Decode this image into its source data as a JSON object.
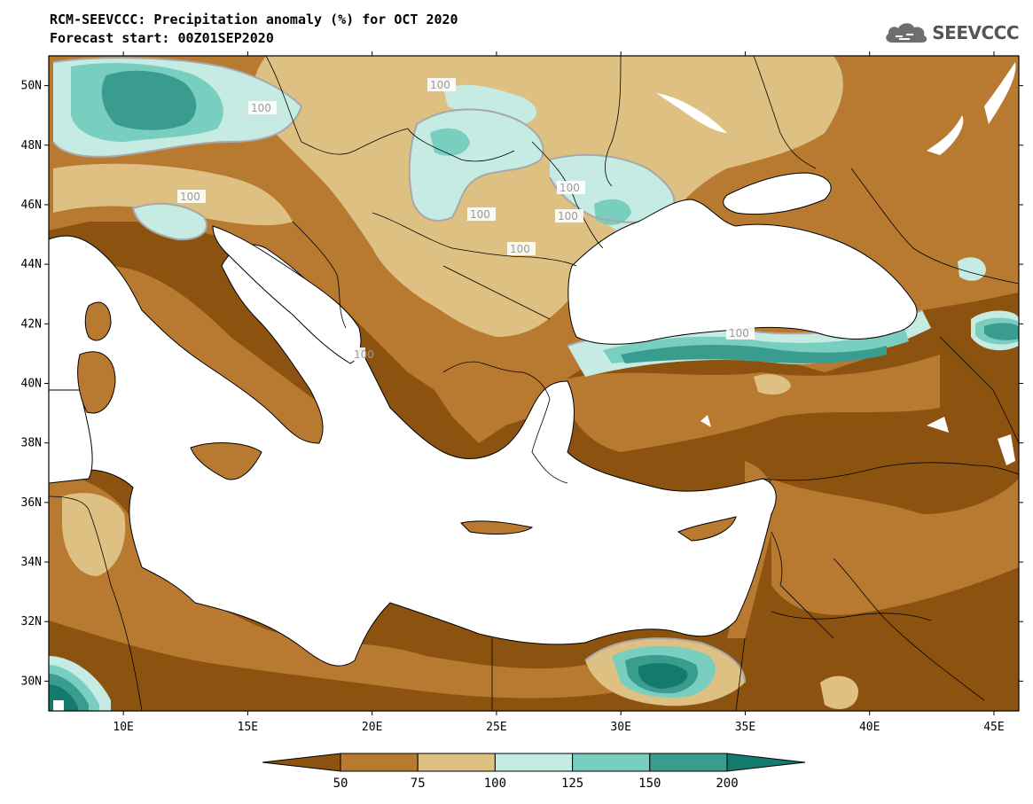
{
  "header": {
    "title": "RCM-SEEVCCC: Precipitation anomaly (%) for OCT 2020",
    "subtitle": "Forecast start: 00Z01SEP2020",
    "logo_text": "SEEVCCC"
  },
  "map": {
    "type": "filled-contour",
    "variable": "Precipitation anomaly (%)",
    "lon_ticks": [
      "10E",
      "15E",
      "20E",
      "25E",
      "30E",
      "35E",
      "40E",
      "45E"
    ],
    "lat_ticks": [
      "50N",
      "48N",
      "46N",
      "44N",
      "42N",
      "40N",
      "38N",
      "36N",
      "34N",
      "32N",
      "30N"
    ],
    "lon_range": [
      7,
      46
    ],
    "lat_range": [
      29,
      51
    ],
    "contour_labels": [
      "100",
      "100",
      "100",
      "100",
      "100",
      "100",
      "100",
      "100",
      "100"
    ]
  },
  "colorbar": {
    "levels": [
      "50",
      "75",
      "100",
      "125",
      "150",
      "200"
    ],
    "colors": [
      "#8c5310",
      "#b87a30",
      "#dfc083",
      "#c5ebe2",
      "#78cfc0",
      "#3a9c8e",
      "#137a6c"
    ]
  },
  "palette": {
    "very_dry": "#8c5310",
    "dry": "#b87a30",
    "slightly_dry": "#dfc083",
    "slightly_wet": "#c5ebe2",
    "wet": "#78cfc0",
    "very_wet": "#3a9c8e",
    "extreme_wet": "#137a6c",
    "water": "#ffffff",
    "contour_line": "#a8a8a8"
  }
}
